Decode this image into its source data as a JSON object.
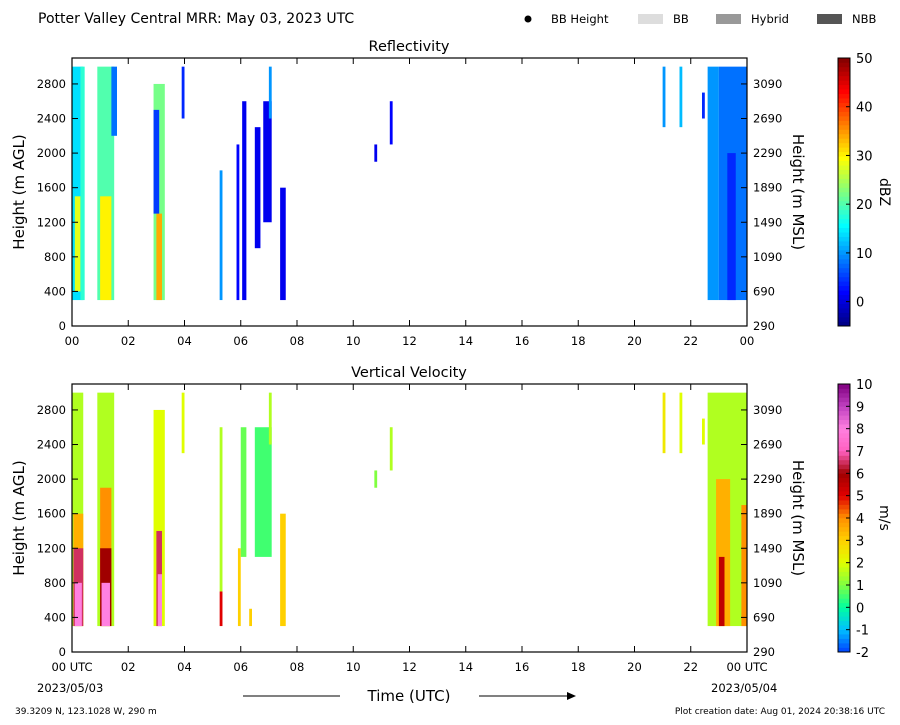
{
  "header": {
    "title": "Potter Valley Central MRR:  May 03, 2023 UTC",
    "legend": [
      {
        "label": "BB Height",
        "kind": "dot",
        "color": "#000000"
      },
      {
        "label": "BB",
        "kind": "box",
        "color": "#dddddd"
      },
      {
        "label": "Hybrid",
        "kind": "box",
        "color": "#999999"
      },
      {
        "label": "NBB",
        "kind": "box",
        "color": "#555555"
      }
    ]
  },
  "footer": {
    "location": "39.3209 N, 123.1028 W, 290 m",
    "creation": "Plot creation date: Aug 01, 2024 20:38:16 UTC",
    "time_label": "Time (UTC)",
    "start_date": "2023/05/03",
    "end_date": "2023/05/04"
  },
  "chart_data": [
    {
      "type": "heatmap",
      "title": "Reflectivity",
      "xlabel": "",
      "ylabel": "Height (m AGL)",
      "ylabel_right": "Height (m MSL)",
      "xticks": [
        "00",
        "02",
        "04",
        "06",
        "08",
        "10",
        "12",
        "14",
        "16",
        "18",
        "20",
        "22",
        "00"
      ],
      "xlim": [
        0,
        24
      ],
      "ylim": [
        0,
        3100
      ],
      "yticks_left": [
        "0",
        "400",
        "800",
        "1200",
        "1600",
        "2000",
        "2400",
        "2800"
      ],
      "yticks_right": [
        "290",
        "690",
        "1090",
        "1490",
        "1890",
        "2290",
        "2690",
        "3090"
      ],
      "colorbar": {
        "label": "dBZ",
        "range": [
          -5,
          50
        ],
        "ticks": [
          "0",
          "10",
          "20",
          "30",
          "40",
          "50"
        ],
        "colors": [
          "#00007f",
          "#0000ff",
          "#007fff",
          "#00ffff",
          "#7fff7f",
          "#ffff00",
          "#ff7f00",
          "#ff0000",
          "#7f0000"
        ]
      },
      "segments": [
        {
          "t0": 0.0,
          "t1": 0.4,
          "h0": 300,
          "h1": 3000,
          "v": 14
        },
        {
          "t0": 0.1,
          "t1": 0.3,
          "h0": 400,
          "h1": 1500,
          "v": 28
        },
        {
          "t0": 0.3,
          "t1": 0.45,
          "h0": 300,
          "h1": 3000,
          "v": 18
        },
        {
          "t0": 0.9,
          "t1": 1.5,
          "h0": 300,
          "h1": 3000,
          "v": 20
        },
        {
          "t0": 1.0,
          "t1": 1.4,
          "h0": 300,
          "h1": 1500,
          "v": 30
        },
        {
          "t0": 1.4,
          "t1": 1.6,
          "h0": 2200,
          "h1": 3000,
          "v": 8
        },
        {
          "t0": 2.9,
          "t1": 3.3,
          "h0": 300,
          "h1": 2800,
          "v": 22
        },
        {
          "t0": 3.0,
          "t1": 3.2,
          "h0": 300,
          "h1": 1300,
          "v": 34
        },
        {
          "t0": 2.9,
          "t1": 3.1,
          "h0": 1300,
          "h1": 2500,
          "v": 5
        },
        {
          "t0": 3.9,
          "t1": 4.0,
          "h0": 2400,
          "h1": 3000,
          "v": 4
        },
        {
          "t0": 5.25,
          "t1": 5.35,
          "h0": 300,
          "h1": 1800,
          "v": 10
        },
        {
          "t0": 5.85,
          "t1": 5.95,
          "h0": 300,
          "h1": 2100,
          "v": 2
        },
        {
          "t0": 6.05,
          "t1": 6.2,
          "h0": 300,
          "h1": 2600,
          "v": 1
        },
        {
          "t0": 6.5,
          "t1": 6.7,
          "h0": 900,
          "h1": 2300,
          "v": 1
        },
        {
          "t0": 6.8,
          "t1": 7.1,
          "h0": 1200,
          "h1": 2600,
          "v": 1
        },
        {
          "t0": 7.0,
          "t1": 7.1,
          "h0": 2400,
          "h1": 3000,
          "v": 10
        },
        {
          "t0": 7.4,
          "t1": 7.6,
          "h0": 300,
          "h1": 1600,
          "v": 1
        },
        {
          "t0": 10.75,
          "t1": 10.85,
          "h0": 1900,
          "h1": 2100,
          "v": 1
        },
        {
          "t0": 11.3,
          "t1": 11.4,
          "h0": 2100,
          "h1": 2600,
          "v": 2
        },
        {
          "t0": 21.0,
          "t1": 21.1,
          "h0": 2300,
          "h1": 3000,
          "v": 10
        },
        {
          "t0": 21.6,
          "t1": 21.7,
          "h0": 2300,
          "h1": 3000,
          "v": 12
        },
        {
          "t0": 22.4,
          "t1": 22.5,
          "h0": 2400,
          "h1": 2700,
          "v": 4
        },
        {
          "t0": 22.6,
          "t1": 23.0,
          "h0": 300,
          "h1": 3000,
          "v": 10
        },
        {
          "t0": 23.0,
          "t1": 24.0,
          "h0": 300,
          "h1": 3000,
          "v": 8
        },
        {
          "t0": 23.3,
          "t1": 23.6,
          "h0": 300,
          "h1": 2000,
          "v": 4
        }
      ]
    },
    {
      "type": "heatmap",
      "title": "Vertical Velocity",
      "xlabel": "Time (UTC)",
      "ylabel": "Height (m AGL)",
      "ylabel_right": "Height (m MSL)",
      "xticks": [
        "00 UTC",
        "02",
        "04",
        "06",
        "08",
        "10",
        "12",
        "14",
        "16",
        "18",
        "20",
        "22",
        "00 UTC"
      ],
      "xlim": [
        0,
        24
      ],
      "ylim": [
        0,
        3100
      ],
      "yticks_left": [
        "0",
        "400",
        "800",
        "1200",
        "1600",
        "2000",
        "2400",
        "2800"
      ],
      "yticks_right": [
        "290",
        "690",
        "1090",
        "1490",
        "1890",
        "2290",
        "2690",
        "3090"
      ],
      "colorbar": {
        "label": "m/s",
        "range": [
          -2,
          10
        ],
        "ticks": [
          "-2",
          "-1",
          "0",
          "1",
          "2",
          "3",
          "4",
          "5",
          "6",
          "7",
          "8",
          "9",
          "10"
        ],
        "colors": [
          "#0040ff",
          "#00c0ff",
          "#00ffa0",
          "#80ff40",
          "#e0ff00",
          "#ffd000",
          "#ff9000",
          "#e00000",
          "#a00000",
          "#ff60c0",
          "#ff80e0",
          "#c040c0",
          "#800080"
        ]
      },
      "segments": [
        {
          "t0": 0.0,
          "t1": 0.4,
          "h0": 300,
          "h1": 3000,
          "v": 1.5
        },
        {
          "t0": 0.05,
          "t1": 0.4,
          "h0": 300,
          "h1": 1600,
          "v": 3.5
        },
        {
          "t0": 0.05,
          "t1": 0.4,
          "h0": 300,
          "h1": 1200,
          "v": 6.5
        },
        {
          "t0": 0.1,
          "t1": 0.35,
          "h0": 300,
          "h1": 800,
          "v": 8
        },
        {
          "t0": 0.9,
          "t1": 1.5,
          "h0": 300,
          "h1": 3000,
          "v": 1.5
        },
        {
          "t0": 1.0,
          "t1": 1.4,
          "h0": 300,
          "h1": 1900,
          "v": 4
        },
        {
          "t0": 1.0,
          "t1": 1.4,
          "h0": 300,
          "h1": 1200,
          "v": 6
        },
        {
          "t0": 1.05,
          "t1": 1.35,
          "h0": 300,
          "h1": 800,
          "v": 8
        },
        {
          "t0": 2.9,
          "t1": 3.3,
          "h0": 300,
          "h1": 2800,
          "v": 2
        },
        {
          "t0": 3.0,
          "t1": 3.2,
          "h0": 300,
          "h1": 1400,
          "v": 6.5
        },
        {
          "t0": 3.05,
          "t1": 3.2,
          "h0": 300,
          "h1": 900,
          "v": 8
        },
        {
          "t0": 3.9,
          "t1": 4.0,
          "h0": 2300,
          "h1": 3000,
          "v": 2
        },
        {
          "t0": 5.25,
          "t1": 5.35,
          "h0": 700,
          "h1": 2600,
          "v": 1.5
        },
        {
          "t0": 5.25,
          "t1": 5.35,
          "h0": 300,
          "h1": 700,
          "v": 5
        },
        {
          "t0": 5.9,
          "t1": 6.0,
          "h0": 300,
          "h1": 1200,
          "v": 3
        },
        {
          "t0": 6.0,
          "t1": 6.2,
          "h0": 1100,
          "h1": 2600,
          "v": 0.8
        },
        {
          "t0": 6.3,
          "t1": 6.4,
          "h0": 300,
          "h1": 500,
          "v": 3
        },
        {
          "t0": 6.5,
          "t1": 7.1,
          "h0": 1100,
          "h1": 2600,
          "v": 0.5
        },
        {
          "t0": 7.0,
          "t1": 7.1,
          "h0": 2400,
          "h1": 3000,
          "v": 1.5
        },
        {
          "t0": 7.4,
          "t1": 7.6,
          "h0": 300,
          "h1": 1600,
          "v": 3
        },
        {
          "t0": 10.75,
          "t1": 10.85,
          "h0": 1900,
          "h1": 2100,
          "v": 1
        },
        {
          "t0": 11.3,
          "t1": 11.4,
          "h0": 2100,
          "h1": 2600,
          "v": 1.5
        },
        {
          "t0": 21.0,
          "t1": 21.1,
          "h0": 2300,
          "h1": 3000,
          "v": 2.5
        },
        {
          "t0": 21.6,
          "t1": 21.7,
          "h0": 2300,
          "h1": 3000,
          "v": 2
        },
        {
          "t0": 22.4,
          "t1": 22.5,
          "h0": 2400,
          "h1": 2700,
          "v": 2
        },
        {
          "t0": 22.6,
          "t1": 24.0,
          "h0": 300,
          "h1": 3000,
          "v": 1.5
        },
        {
          "t0": 22.9,
          "t1": 23.4,
          "h0": 300,
          "h1": 2000,
          "v": 3.5
        },
        {
          "t0": 23.0,
          "t1": 23.2,
          "h0": 300,
          "h1": 1100,
          "v": 5.5
        },
        {
          "t0": 23.8,
          "t1": 24.0,
          "h0": 300,
          "h1": 1700,
          "v": 4
        }
      ]
    }
  ]
}
